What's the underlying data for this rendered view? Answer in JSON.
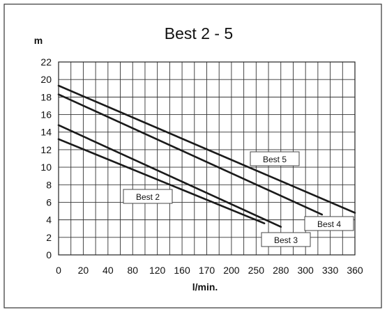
{
  "chart_data": {
    "type": "line",
    "title": "Best 2 - 5",
    "xlabel": "l/min.",
    "ylabel": "m",
    "x_tick_labels": [
      "0",
      "20",
      "40",
      "80",
      "120",
      "160",
      "170",
      "200",
      "250",
      "280",
      "300",
      "330",
      "360"
    ],
    "y_ticks": [
      0,
      2,
      4,
      6,
      8,
      10,
      12,
      14,
      16,
      18,
      20,
      22
    ],
    "ylim": [
      0,
      22
    ],
    "grid": true,
    "series": [
      {
        "name": "Best 2",
        "x": [
          0,
          250
        ],
        "y": [
          13.2,
          3.6
        ]
      },
      {
        "name": "Best 3",
        "x": [
          0,
          270
        ],
        "y": [
          14.8,
          3.2
        ]
      },
      {
        "name": "Best 4",
        "x": [
          0,
          320
        ],
        "y": [
          18.3,
          4.6
        ]
      },
      {
        "name": "Best 5",
        "x": [
          0,
          360
        ],
        "y": [
          19.3,
          4.8
        ]
      }
    ],
    "line_color": "#1a1a1a"
  }
}
